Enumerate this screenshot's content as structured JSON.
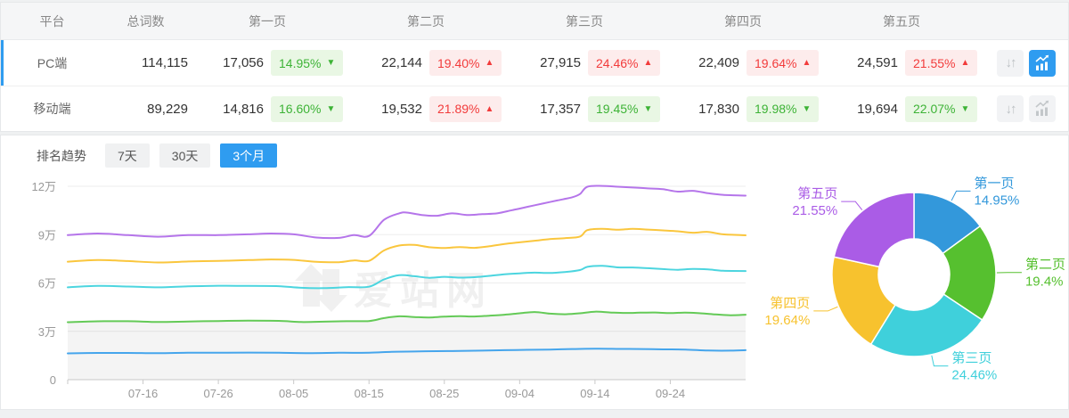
{
  "icons": {
    "sort_glyph": "↓↑",
    "chart_icon": "bar-chart-trend-icon"
  },
  "colors": {
    "accent_blue": "#2f9cf0",
    "badge_green": "#3db336",
    "badge_green_bg": "#e9f7e4",
    "badge_red": "#f23b3b",
    "badge_red_bg": "#fdecec",
    "header_bg": "#f5f6f7",
    "border": "#e6e8ea",
    "axis_label": "#999999"
  },
  "table": {
    "columns": [
      "平台",
      "总词数",
      "第一页",
      "第二页",
      "第三页",
      "第四页",
      "第五页"
    ],
    "rows": [
      {
        "platform": "PC端",
        "total": "114,115",
        "selected": true,
        "pages": [
          {
            "value": "17,056",
            "pct": "14.95%",
            "arrow": "▼",
            "color": "green"
          },
          {
            "value": "22,144",
            "pct": "19.40%",
            "arrow": "▲",
            "color": "red"
          },
          {
            "value": "27,915",
            "pct": "24.46%",
            "arrow": "▲",
            "color": "red"
          },
          {
            "value": "22,409",
            "pct": "19.64%",
            "arrow": "▲",
            "color": "red"
          },
          {
            "value": "24,591",
            "pct": "21.55%",
            "arrow": "▲",
            "color": "red"
          }
        ]
      },
      {
        "platform": "移动端",
        "total": "89,229",
        "selected": false,
        "pages": [
          {
            "value": "14,816",
            "pct": "16.60%",
            "arrow": "▼",
            "color": "green"
          },
          {
            "value": "19,532",
            "pct": "21.89%",
            "arrow": "▲",
            "color": "red"
          },
          {
            "value": "17,357",
            "pct": "19.45%",
            "arrow": "▼",
            "color": "green"
          },
          {
            "value": "17,830",
            "pct": "19.98%",
            "arrow": "▼",
            "color": "green"
          },
          {
            "value": "19,694",
            "pct": "22.07%",
            "arrow": "▼",
            "color": "green"
          }
        ]
      }
    ]
  },
  "trend": {
    "title": "排名趋势",
    "tabs": [
      {
        "label": "7天",
        "active": false
      },
      {
        "label": "30天",
        "active": false
      },
      {
        "label": "3个月",
        "active": true
      }
    ]
  },
  "watermark": {
    "text": "爱站网"
  },
  "chart_data": [
    {
      "type": "line",
      "title": "排名趋势 3个月",
      "unit": "万",
      "ylim": [
        0,
        12
      ],
      "y_ticks": [
        0,
        3,
        6,
        9,
        12
      ],
      "y_tick_labels": [
        "0",
        "3万",
        "6万",
        "9万",
        "12万"
      ],
      "x_range_days": [
        0,
        90
      ],
      "x_tick_days": [
        10,
        20,
        30,
        40,
        50,
        60,
        70,
        80
      ],
      "x_tick_labels": [
        "07-16",
        "07-26",
        "08-05",
        "08-15",
        "08-25",
        "09-04",
        "09-14",
        "09-24"
      ],
      "grid": true,
      "legend": false,
      "series": [
        {
          "name": "purple-line",
          "color": "#b575ea",
          "points": [
            [
              0,
              8.97
            ],
            [
              4,
              9.07
            ],
            [
              8,
              8.97
            ],
            [
              12,
              8.87
            ],
            [
              16,
              8.97
            ],
            [
              20,
              8.97
            ],
            [
              24,
              9.02
            ],
            [
              27,
              9.07
            ],
            [
              30,
              9.02
            ],
            [
              33,
              8.82
            ],
            [
              36,
              8.8
            ],
            [
              38,
              8.97
            ],
            [
              40,
              8.92
            ],
            [
              42,
              9.92
            ],
            [
              44,
              10.32
            ],
            [
              45,
              10.37
            ],
            [
              47,
              10.22
            ],
            [
              49,
              10.17
            ],
            [
              51,
              10.32
            ],
            [
              53,
              10.22
            ],
            [
              55,
              10.27
            ],
            [
              57,
              10.32
            ],
            [
              59,
              10.52
            ],
            [
              61,
              10.72
            ],
            [
              63,
              10.92
            ],
            [
              65,
              11.12
            ],
            [
              67,
              11.32
            ],
            [
              68,
              11.52
            ],
            [
              69,
              11.97
            ],
            [
              71,
              12.02
            ],
            [
              73,
              11.97
            ],
            [
              75,
              11.92
            ],
            [
              77,
              11.87
            ],
            [
              79,
              11.82
            ],
            [
              81,
              11.67
            ],
            [
              83,
              11.72
            ],
            [
              85,
              11.57
            ],
            [
              87,
              11.47
            ],
            [
              90,
              11.42
            ]
          ]
        },
        {
          "name": "yellow-line",
          "color": "#fac63d",
          "points": [
            [
              0,
              7.32
            ],
            [
              4,
              7.42
            ],
            [
              8,
              7.36
            ],
            [
              12,
              7.27
            ],
            [
              16,
              7.33
            ],
            [
              20,
              7.37
            ],
            [
              24,
              7.42
            ],
            [
              27,
              7.46
            ],
            [
              30,
              7.43
            ],
            [
              33,
              7.31
            ],
            [
              36,
              7.29
            ],
            [
              38,
              7.4
            ],
            [
              40,
              7.37
            ],
            [
              42,
              8.02
            ],
            [
              44,
              8.32
            ],
            [
              46,
              8.36
            ],
            [
              48,
              8.22
            ],
            [
              50,
              8.17
            ],
            [
              52,
              8.23
            ],
            [
              54,
              8.18
            ],
            [
              56,
              8.28
            ],
            [
              58,
              8.42
            ],
            [
              60,
              8.52
            ],
            [
              62,
              8.62
            ],
            [
              64,
              8.72
            ],
            [
              66,
              8.78
            ],
            [
              68,
              8.88
            ],
            [
              69,
              9.28
            ],
            [
              71,
              9.36
            ],
            [
              73,
              9.3
            ],
            [
              75,
              9.36
            ],
            [
              77,
              9.31
            ],
            [
              79,
              9.26
            ],
            [
              81,
              9.21
            ],
            [
              83,
              9.12
            ],
            [
              85,
              9.17
            ],
            [
              87,
              9.02
            ],
            [
              90,
              8.96
            ]
          ]
        },
        {
          "name": "cyan-line",
          "color": "#4cd5df",
          "points": [
            [
              0,
              5.73
            ],
            [
              4,
              5.82
            ],
            [
              8,
              5.78
            ],
            [
              12,
              5.73
            ],
            [
              16,
              5.79
            ],
            [
              20,
              5.83
            ],
            [
              24,
              5.82
            ],
            [
              28,
              5.8
            ],
            [
              31,
              5.7
            ],
            [
              34,
              5.68
            ],
            [
              37,
              5.74
            ],
            [
              40,
              5.77
            ],
            [
              42,
              6.22
            ],
            [
              44,
              6.48
            ],
            [
              46,
              6.42
            ],
            [
              48,
              6.32
            ],
            [
              50,
              6.38
            ],
            [
              52,
              6.33
            ],
            [
              54,
              6.36
            ],
            [
              56,
              6.44
            ],
            [
              58,
              6.54
            ],
            [
              60,
              6.6
            ],
            [
              62,
              6.64
            ],
            [
              64,
              6.62
            ],
            [
              66,
              6.68
            ],
            [
              68,
              6.8
            ],
            [
              69,
              7.0
            ],
            [
              71,
              7.06
            ],
            [
              73,
              6.97
            ],
            [
              75,
              6.96
            ],
            [
              77,
              6.92
            ],
            [
              79,
              6.86
            ],
            [
              81,
              6.82
            ],
            [
              83,
              6.87
            ],
            [
              85,
              6.84
            ],
            [
              87,
              6.76
            ],
            [
              90,
              6.74
            ]
          ]
        },
        {
          "name": "green-line",
          "color": "#64ca57",
          "area_fill": "rgba(0,0,0,0.045)",
          "points": [
            [
              0,
              3.57
            ],
            [
              4,
              3.62
            ],
            [
              8,
              3.63
            ],
            [
              12,
              3.58
            ],
            [
              16,
              3.61
            ],
            [
              20,
              3.64
            ],
            [
              24,
              3.66
            ],
            [
              28,
              3.65
            ],
            [
              31,
              3.58
            ],
            [
              34,
              3.6
            ],
            [
              37,
              3.63
            ],
            [
              40,
              3.64
            ],
            [
              42,
              3.82
            ],
            [
              44,
              3.93
            ],
            [
              46,
              3.89
            ],
            [
              48,
              3.86
            ],
            [
              50,
              3.91
            ],
            [
              52,
              3.94
            ],
            [
              54,
              3.92
            ],
            [
              56,
              3.97
            ],
            [
              58,
              4.03
            ],
            [
              60,
              4.12
            ],
            [
              62,
              4.2
            ],
            [
              64,
              4.1
            ],
            [
              66,
              4.06
            ],
            [
              68,
              4.12
            ],
            [
              70,
              4.22
            ],
            [
              72,
              4.17
            ],
            [
              74,
              4.14
            ],
            [
              76,
              4.16
            ],
            [
              78,
              4.17
            ],
            [
              80,
              4.13
            ],
            [
              82,
              4.16
            ],
            [
              84,
              4.12
            ],
            [
              86,
              4.05
            ],
            [
              88,
              4.0
            ],
            [
              90,
              4.03
            ]
          ]
        },
        {
          "name": "blue-line",
          "color": "#45a5ec",
          "points": [
            [
              0,
              1.63
            ],
            [
              4,
              1.66
            ],
            [
              8,
              1.66
            ],
            [
              12,
              1.64
            ],
            [
              16,
              1.67
            ],
            [
              20,
              1.67
            ],
            [
              24,
              1.68
            ],
            [
              28,
              1.67
            ],
            [
              32,
              1.65
            ],
            [
              36,
              1.67
            ],
            [
              40,
              1.67
            ],
            [
              43,
              1.73
            ],
            [
              46,
              1.75
            ],
            [
              49,
              1.77
            ],
            [
              52,
              1.78
            ],
            [
              55,
              1.8
            ],
            [
              58,
              1.83
            ],
            [
              61,
              1.85
            ],
            [
              64,
              1.87
            ],
            [
              67,
              1.9
            ],
            [
              70,
              1.92
            ],
            [
              73,
              1.91
            ],
            [
              76,
              1.9
            ],
            [
              79,
              1.88
            ],
            [
              82,
              1.87
            ],
            [
              85,
              1.81
            ],
            [
              88,
              1.8
            ],
            [
              90,
              1.83
            ]
          ]
        }
      ]
    },
    {
      "type": "pie",
      "donut": true,
      "slices": [
        {
          "label": "第一页",
          "value": 14.95,
          "pct": "14.95%",
          "color": "#3398db"
        },
        {
          "label": "第二页",
          "value": 19.4,
          "pct": "19.4%",
          "color": "#56c02f"
        },
        {
          "label": "第三页",
          "value": 24.46,
          "pct": "24.46%",
          "color": "#3fd0db"
        },
        {
          "label": "第四页",
          "value": 19.64,
          "pct": "19.64%",
          "color": "#f7c22e"
        },
        {
          "label": "第五页",
          "value": 21.55,
          "pct": "21.55%",
          "color": "#aa5ce6"
        }
      ]
    }
  ]
}
